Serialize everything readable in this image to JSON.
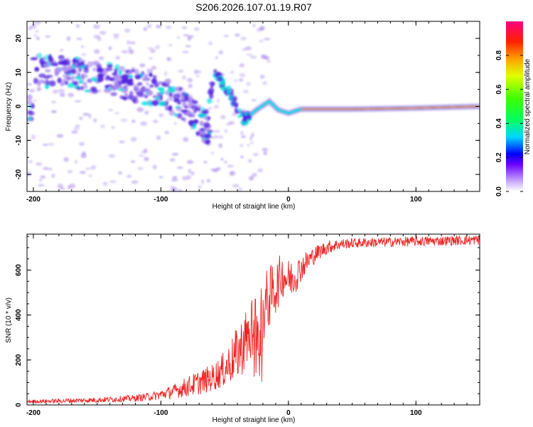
{
  "title": "S206.2026.107.01.19.R07",
  "colors": {
    "snr_line": "#ee2222",
    "spectrum_weak": "#b090f0",
    "spectrum_mid": "#5020e0",
    "spectrum_strong": "#00e0e0",
    "spectrum_peak": "#ff2020"
  },
  "chart_data": [
    {
      "type": "heatmap",
      "title": "S206.2026.107.01.19.R07",
      "xlabel": "Height of straight line (km)",
      "ylabel": "Frequency (Hz)",
      "xlim": [
        -205,
        150
      ],
      "ylim": [
        -25,
        25
      ],
      "x_ticks": [
        -200,
        -100,
        0,
        100
      ],
      "y_ticks": [
        20,
        10,
        0,
        -10,
        -20
      ],
      "colorbar": {
        "label": "Normalized spectral amplitude",
        "range": [
          0,
          1
        ],
        "ticks": [
          "0.0",
          "0.2",
          "0.4",
          "0.6",
          "0.8"
        ],
        "tick_values": [
          0,
          0.2,
          0.4,
          0.6,
          0.8
        ]
      },
      "ridge_description": "Doppler ridge descending from ~10 Hz at -200 km to 0 Hz near -20 km, a second branch from ~12 Hz at -65 km to -5 Hz at -35 km, then a strong stable line near 0 Hz beyond 0 km",
      "ridge": [
        {
          "x": -200,
          "y": 11
        },
        {
          "x": -180,
          "y": 10
        },
        {
          "x": -160,
          "y": 9
        },
        {
          "x": -140,
          "y": 8
        },
        {
          "x": -120,
          "y": 6
        },
        {
          "x": -100,
          "y": 4
        },
        {
          "x": -85,
          "y": 1
        },
        {
          "x": -75,
          "y": -2
        },
        {
          "x": -65,
          "y": -6
        },
        {
          "x": -58,
          "y": 10
        },
        {
          "x": -50,
          "y": 6
        },
        {
          "x": -42,
          "y": 1
        },
        {
          "x": -35,
          "y": -4
        },
        {
          "x": -25,
          "y": -1
        },
        {
          "x": -15,
          "y": 1.5
        },
        {
          "x": -8,
          "y": -1
        },
        {
          "x": 0,
          "y": -2
        },
        {
          "x": 10,
          "y": -0.8
        },
        {
          "x": 50,
          "y": -0.8
        },
        {
          "x": 100,
          "y": -0.5
        },
        {
          "x": 150,
          "y": 0
        }
      ]
    },
    {
      "type": "line",
      "xlabel": "Height of straight line (km)",
      "ylabel": "SNR (10 * v/v)",
      "xlim": [
        -205,
        150
      ],
      "ylim": [
        0,
        760
      ],
      "x_ticks": [
        -200,
        -100,
        0,
        100
      ],
      "y_ticks": [
        0,
        200,
        400,
        600
      ],
      "series": [
        {
          "name": "SNR",
          "x": [
            -205,
            -180,
            -150,
            -120,
            -105,
            -90,
            -80,
            -70,
            -60,
            -50,
            -40,
            -30,
            -22,
            -20,
            -15,
            -10,
            -5,
            0,
            5,
            10,
            15,
            20,
            25,
            30,
            40,
            50,
            60,
            80,
            100,
            120,
            150
          ],
          "y": [
            15,
            18,
            22,
            30,
            40,
            60,
            80,
            100,
            120,
            160,
            230,
            320,
            380,
            420,
            480,
            520,
            580,
            560,
            570,
            610,
            640,
            665,
            685,
            700,
            715,
            720,
            722,
            725,
            728,
            730,
            735
          ],
          "noise": [
            8,
            10,
            12,
            15,
            20,
            30,
            45,
            55,
            60,
            80,
            120,
            150,
            170,
            160,
            140,
            120,
            100,
            90,
            80,
            60,
            50,
            40,
            35,
            30,
            25,
            22,
            22,
            22,
            22,
            22,
            22
          ]
        }
      ]
    }
  ]
}
